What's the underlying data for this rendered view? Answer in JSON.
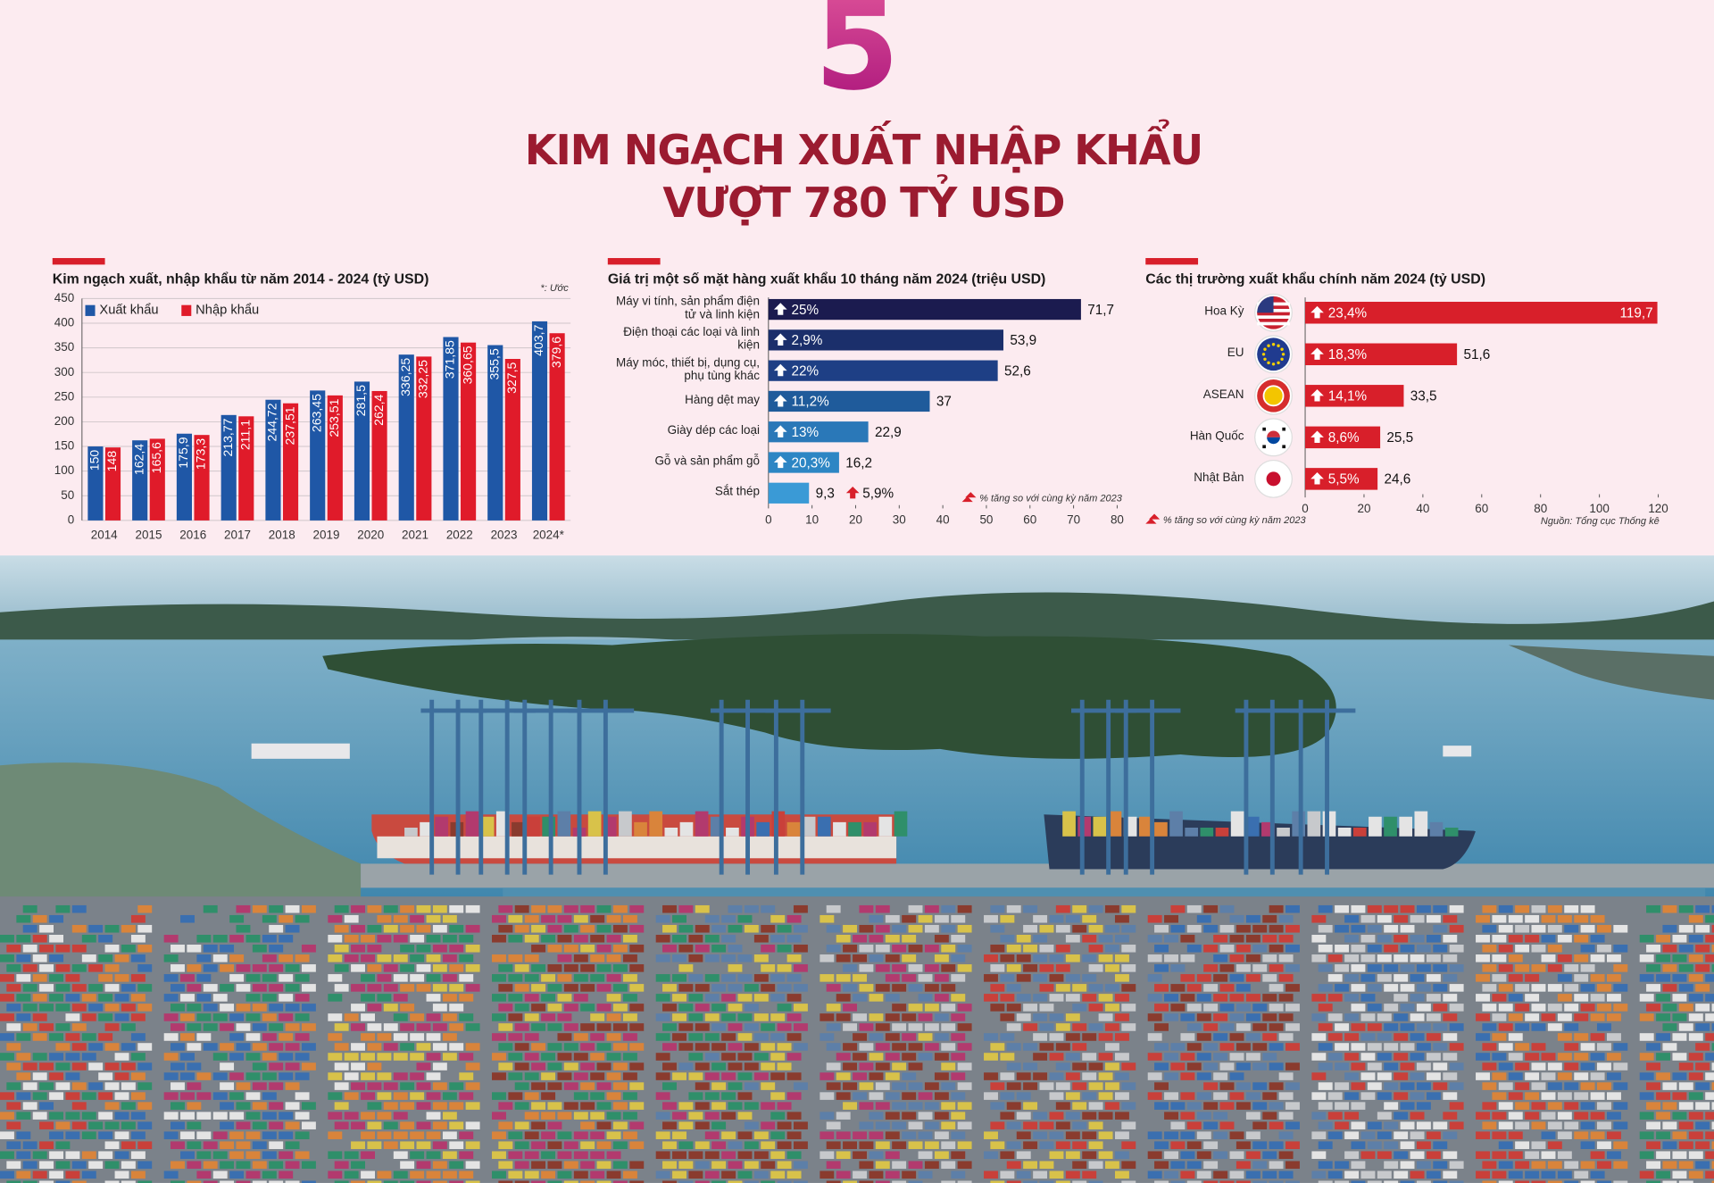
{
  "header": {
    "number": "5",
    "title_lines": [
      "KIM NGẠCH XUẤT NHẬP KHẨU",
      "VƯỢT 780 TỶ USD"
    ]
  },
  "chart_data": [
    {
      "type": "bar",
      "title": "Kim ngạch xuất, nhập khẩu từ năm 2014 - 2024 (tỷ USD)",
      "note": "*: Ước",
      "categories": [
        "2014",
        "2015",
        "2016",
        "2017",
        "2018",
        "2019",
        "2020",
        "2021",
        "2022",
        "2023",
        "2024*"
      ],
      "series": [
        {
          "name": "Xuất khẩu",
          "color": "#1f57a6",
          "values": [
            150,
            162.4,
            175.9,
            213.77,
            244.72,
            263.45,
            281.5,
            336.25,
            371.85,
            355.5,
            403.7
          ],
          "value_labels": [
            "150",
            "162,4",
            "175,9",
            "213,77",
            "244,72",
            "263,45",
            "281,5",
            "336,25",
            "371,85",
            "355,5",
            "403,7"
          ]
        },
        {
          "name": "Nhập khẩu",
          "color": "#e01b2a",
          "values": [
            148,
            165.6,
            173.3,
            211.1,
            237.51,
            253.51,
            262.4,
            332.25,
            360.65,
            327.5,
            379.6
          ],
          "value_labels": [
            "148",
            "165,6",
            "173,3",
            "211,1",
            "237,51",
            "253,51",
            "262,4",
            "332,25",
            "360,65",
            "327,5",
            "379,6"
          ]
        }
      ],
      "ylim": [
        0,
        450
      ],
      "yticks": [
        0,
        50,
        100,
        150,
        200,
        250,
        300,
        350,
        400,
        450
      ],
      "grid": true,
      "legend": "top-left"
    },
    {
      "type": "barh",
      "title": "Giá trị một số mặt hàng xuất khẩu 10 tháng năm 2024 (triệu USD)",
      "categories": [
        "Máy vi tính, sản phẩm điện tử và linh kiện",
        "Điện thoại các loại và linh kiện",
        "Máy móc, thiết bị, dụng cụ, phụ tùng khác",
        "Hàng dệt may",
        "Giày dép các loại",
        "Gỗ và sản phẩm gỗ",
        "Sắt thép"
      ],
      "values": [
        71.7,
        53.9,
        52.6,
        37,
        22.9,
        16.2,
        9.3
      ],
      "value_labels": [
        "71,7",
        "53,9",
        "52,6",
        "37",
        "22,9",
        "16,2",
        "9,3"
      ],
      "colors": [
        "#1b1b4f",
        "#1b2f6b",
        "#1e3f85",
        "#1f5b9b",
        "#2a78b8",
        "#2d86c4",
        "#3a9ad6"
      ],
      "growth": {
        "values": [
          25,
          2.9,
          22,
          11.2,
          13,
          20.3,
          5.9
        ],
        "value_labels": [
          "25%",
          "2,9%",
          "22%",
          "11,2%",
          "13%",
          "20,3%",
          "5,9%"
        ]
      },
      "growth_note": "% tăng so với cùng kỳ năm 2023",
      "xlim": [
        0,
        80
      ],
      "xticks": [
        0,
        10,
        20,
        30,
        40,
        50,
        60,
        70,
        80
      ]
    },
    {
      "type": "barh",
      "title": "Các thị trường xuất khẩu chính năm 2024 (tỷ USD)",
      "categories": [
        "Hoa Kỳ",
        "EU",
        "ASEAN",
        "Hàn Quốc",
        "Nhật Bản"
      ],
      "values": [
        119.7,
        51.6,
        33.5,
        25.5,
        24.6
      ],
      "value_labels": [
        "119,7",
        "51,6",
        "33,5",
        "25,5",
        "24,6"
      ],
      "color": "#d81f2a",
      "growth": {
        "values": [
          23.4,
          18.3,
          14.1,
          8.6,
          5.5
        ],
        "value_labels": [
          "23,4%",
          "18,3%",
          "14,1%",
          "8,6%",
          "5,5%"
        ]
      },
      "growth_note": "% tăng so với cùng kỳ năm 2023",
      "source": "Nguồn: Tổng cục Thống kê",
      "xlim": [
        0,
        120
      ],
      "xticks": [
        0,
        20,
        40,
        60,
        80,
        100,
        120
      ]
    }
  ]
}
